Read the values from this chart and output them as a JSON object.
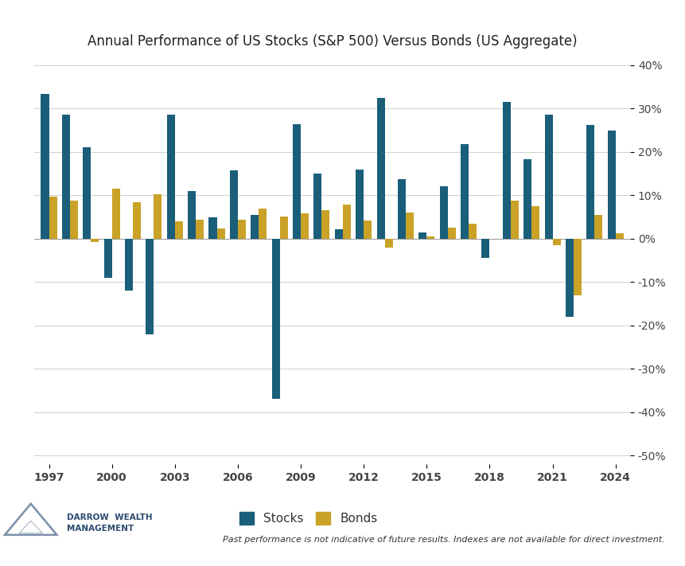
{
  "title": "Annual Performance of US Stocks (S&P 500) Versus Bonds (US Aggregate)",
  "years": [
    1997,
    1998,
    1999,
    2000,
    2001,
    2002,
    2003,
    2004,
    2005,
    2006,
    2007,
    2008,
    2009,
    2010,
    2011,
    2012,
    2013,
    2014,
    2015,
    2016,
    2017,
    2018,
    2019,
    2020,
    2021,
    2022,
    2023,
    2024
  ],
  "stocks": [
    33.4,
    28.6,
    21.0,
    -9.1,
    -11.9,
    -22.1,
    28.7,
    10.9,
    4.9,
    15.8,
    5.5,
    -37.0,
    26.5,
    15.1,
    2.1,
    16.0,
    32.4,
    13.7,
    1.4,
    12.0,
    21.8,
    -4.4,
    31.5,
    18.4,
    28.7,
    -18.1,
    26.3,
    25.0
  ],
  "bonds": [
    9.7,
    8.7,
    -0.8,
    11.6,
    8.4,
    10.3,
    4.1,
    4.3,
    2.4,
    4.3,
    7.0,
    5.2,
    5.9,
    6.5,
    7.8,
    4.2,
    -2.0,
    6.0,
    0.5,
    2.6,
    3.5,
    0.0,
    8.7,
    7.5,
    -1.5,
    -13.0,
    5.5,
    1.3
  ],
  "stock_color": "#1a5e7a",
  "bond_color": "#c9a227",
  "background_color": "#ffffff",
  "grid_color": "#d0d0d0",
  "ylim_bottom": -52,
  "ylim_top": 42,
  "yticks": [
    40,
    30,
    20,
    10,
    0,
    -10,
    -20,
    -30,
    -40,
    -50
  ],
  "xtick_years": [
    1997,
    2000,
    2003,
    2006,
    2009,
    2012,
    2015,
    2018,
    2021,
    2024
  ],
  "legend_stocks": "Stocks",
  "legend_bonds": "Bonds",
  "footer_text": "Past performance is not indicative of future results. Indexes are not available for direct investment.",
  "title_fontsize": 12,
  "tick_fontsize": 10,
  "legend_fontsize": 11,
  "logo_triangle_color": "#7a8fa6",
  "logo_text_color": "#2c4a6e"
}
